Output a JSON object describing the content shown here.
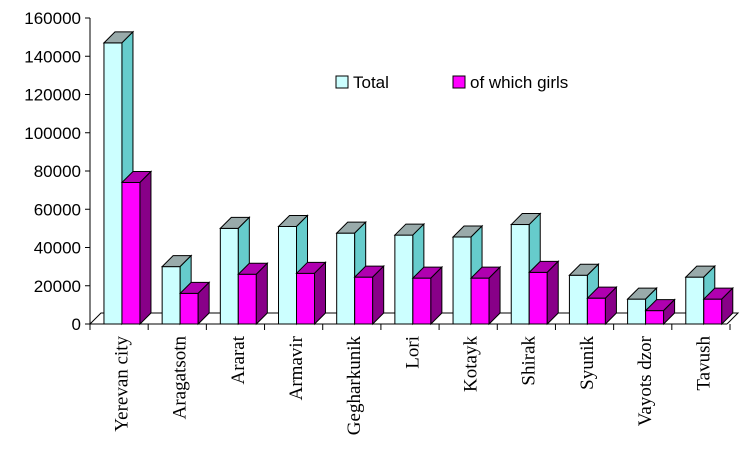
{
  "chart_data": {
    "type": "bar",
    "categories": [
      "Yerevan city",
      "Aragatsotn",
      "Ararat",
      "Armavir",
      "Gegharkunik",
      "Lori",
      "Kotayk",
      "Shirak",
      "Syunik",
      "Vayots dzor",
      "Tavush"
    ],
    "series": [
      {
        "name": "Total",
        "values": [
          147000,
          30000,
          50000,
          51000,
          47500,
          46500,
          45500,
          52000,
          25500,
          13000,
          24500
        ],
        "color": "#ccffff",
        "top_color": "#99aaaa",
        "side_color": "#66cccc"
      },
      {
        "name": "of which girls",
        "values": [
          74000,
          16000,
          26000,
          26500,
          24500,
          24000,
          24000,
          27000,
          13500,
          7000,
          13000
        ],
        "color": "#ff00ff",
        "top_color": "#b000b0",
        "side_color": "#880088"
      }
    ],
    "ylim": [
      0,
      160000
    ],
    "yticks": [
      "0",
      "20000",
      "40000",
      "60000",
      "80000",
      "100000",
      "120000",
      "140000",
      "160000"
    ],
    "grid": false,
    "legend": "inside-top-right"
  }
}
